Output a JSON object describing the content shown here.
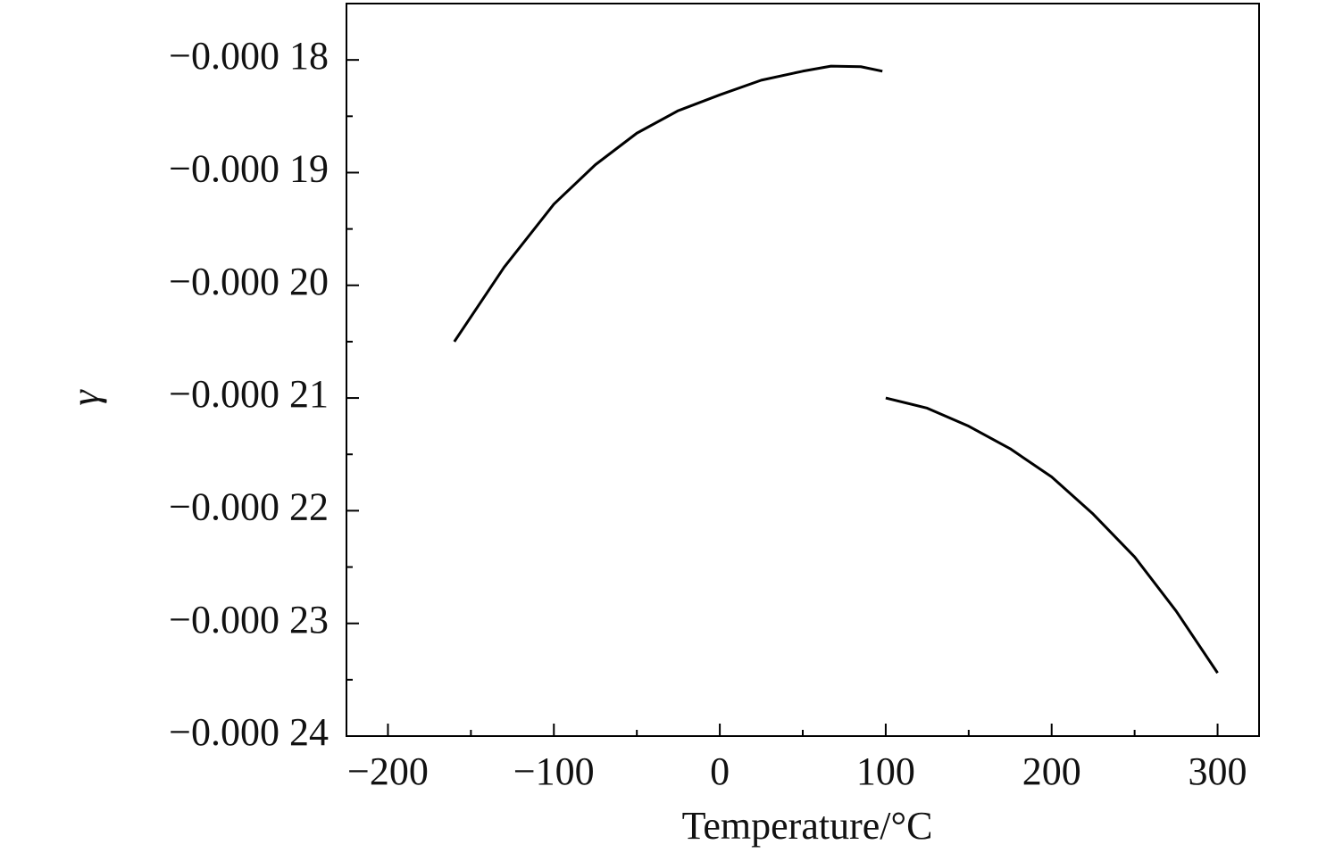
{
  "chart_data": {
    "type": "line",
    "x_label": "Temperature/°C",
    "y_label": "γ",
    "xlim": [
      -225,
      325
    ],
    "ylim": [
      -0.00024,
      -0.000175
    ],
    "xticks": [
      {
        "value": -200,
        "label": "−200"
      },
      {
        "value": -100,
        "label": "−100"
      },
      0,
      100,
      200,
      300
    ],
    "xticks_minor": [
      -150,
      -50,
      50,
      150,
      250
    ],
    "yticks": [
      {
        "value": -0.00018,
        "label": "−0.000 18"
      },
      {
        "value": -0.00019,
        "label": "−0.000 19"
      },
      {
        "value": -0.0002,
        "label": "−0.000 20"
      },
      {
        "value": -0.00021,
        "label": "−0.000 21"
      },
      {
        "value": -0.00022,
        "label": "−0.000 22"
      },
      {
        "value": -0.00023,
        "label": "−0.000 23"
      },
      {
        "value": -0.00024,
        "label": "−0.000 24"
      }
    ],
    "yticks_minor": [
      -0.000185,
      -0.000195,
      -0.000205,
      -0.000215,
      -0.000225,
      -0.000235
    ],
    "series": [
      {
        "color": "#000000",
        "x": [
          -160,
          -130,
          -100,
          -75,
          -50,
          -25,
          0,
          25,
          50,
          67,
          85,
          98
        ],
        "values": [
          -0.000205,
          -0.0001984,
          -0.0001928,
          -0.0001893,
          -0.0001865,
          -0.0001845,
          -0.0001831,
          -0.0001818,
          -0.000181,
          -0.00018055,
          -0.0001806,
          -0.000181
        ]
      },
      {
        "color": "#000000",
        "x": [
          100,
          125,
          150,
          175,
          200,
          225,
          250,
          275,
          300
        ],
        "values": [
          -0.00021,
          -0.0002109,
          -0.0002125,
          -0.0002145,
          -0.000217,
          -0.0002203,
          -0.0002241,
          -0.0002289,
          -0.0002344
        ]
      }
    ]
  }
}
